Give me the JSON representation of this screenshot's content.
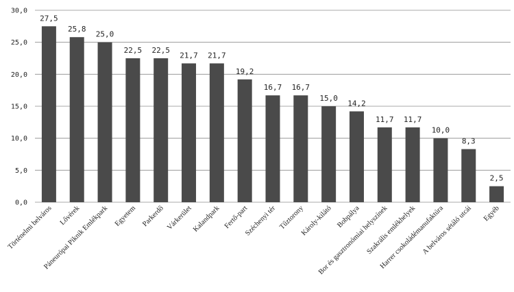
{
  "chart_data": {
    "type": "bar",
    "categories": [
      "Történelmi belváros",
      "Lővérek",
      "Páneurópai Piknik Emlékpark",
      "Egyetem",
      "Parkerdő",
      "Várkerület",
      "Kalandpark",
      "Fertő-part",
      "Széchenyi tér",
      "Tűztorony",
      "Károly-kilátó",
      "Bobpálya",
      "Bor és gasztronómiai helyszínek",
      "Szakrális emlékhelyek",
      "Harrer csokoládémanufaktúra",
      "A belváros sétáló utcái",
      "Egyéb"
    ],
    "values": [
      27.5,
      25.8,
      25.0,
      22.5,
      22.5,
      21.7,
      21.7,
      19.2,
      16.7,
      16.7,
      15.0,
      14.2,
      11.7,
      11.7,
      10.0,
      8.3,
      2.5
    ],
    "value_labels": [
      "27,5",
      "25,8",
      "25,0",
      "22,5",
      "22,5",
      "21,7",
      "21,7",
      "19,2",
      "16,7",
      "16,7",
      "15,0",
      "14,2",
      "11,7",
      "11,7",
      "10,0",
      "8,3",
      "2,5"
    ],
    "y_ticks": [
      0,
      5,
      10,
      15,
      20,
      25,
      30
    ],
    "y_tick_labels": [
      "0,0",
      "5,0",
      "10,0",
      "15,0",
      "20,0",
      "25,0",
      "30,0"
    ],
    "ylim": [
      0,
      30
    ],
    "grid": true,
    "legend": "none",
    "bar_color": "#4a4a4a",
    "title": "",
    "xlabel": "",
    "ylabel": ""
  }
}
